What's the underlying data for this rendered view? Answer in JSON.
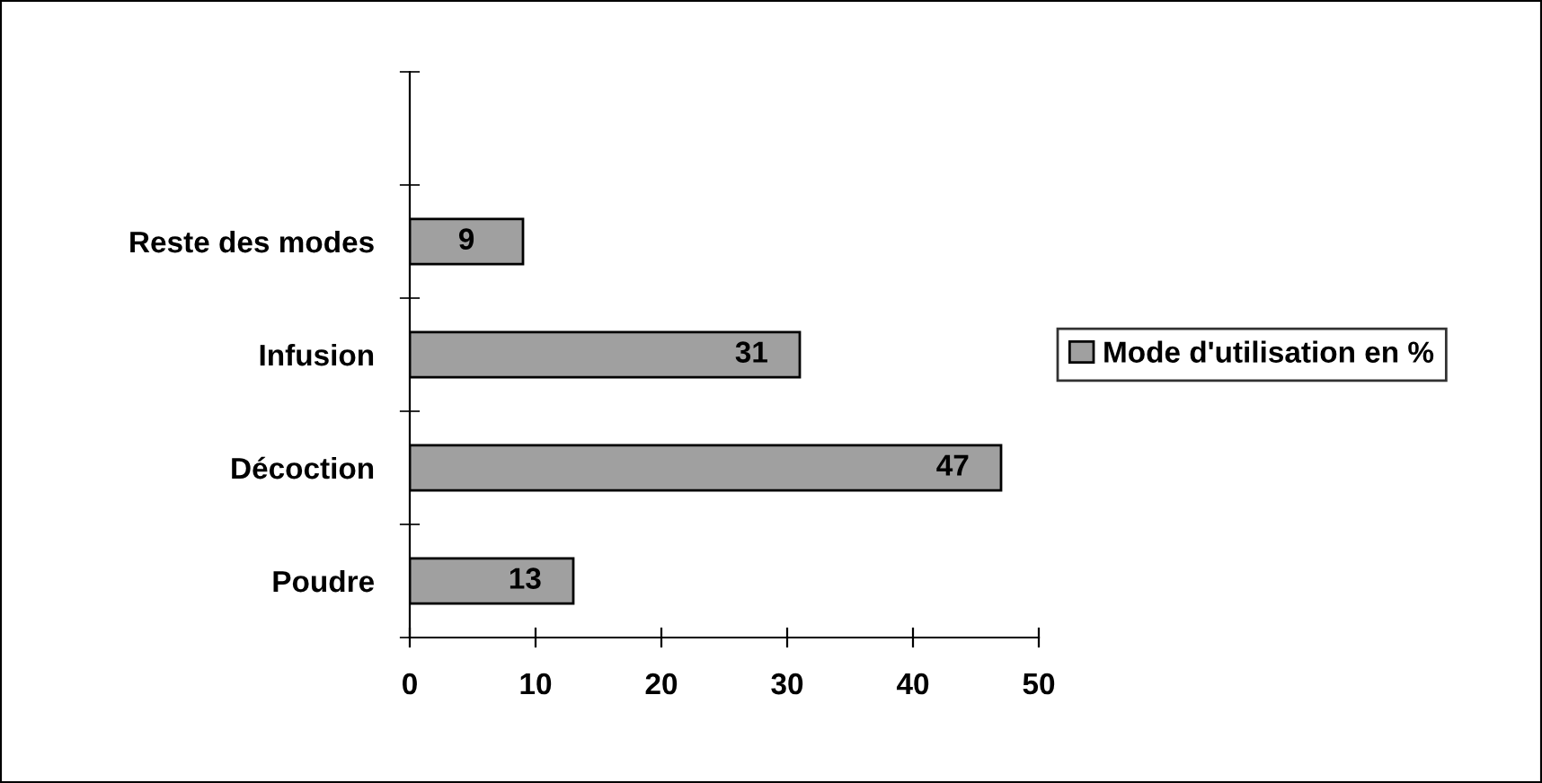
{
  "chart_data": {
    "type": "bar",
    "orientation": "horizontal",
    "categories": [
      null,
      "Reste des modes",
      "Infusion",
      "Décoction",
      "Poudre"
    ],
    "series": [
      {
        "name": "Mode d'utilisation en %",
        "color": "#a0a0a0",
        "values": [
          null,
          9,
          31,
          47,
          13
        ]
      }
    ],
    "xlim": [
      0,
      50
    ],
    "xticks": [
      0,
      10,
      20,
      30,
      40,
      50
    ],
    "data_labels": true,
    "legend": "right",
    "grid": false
  }
}
